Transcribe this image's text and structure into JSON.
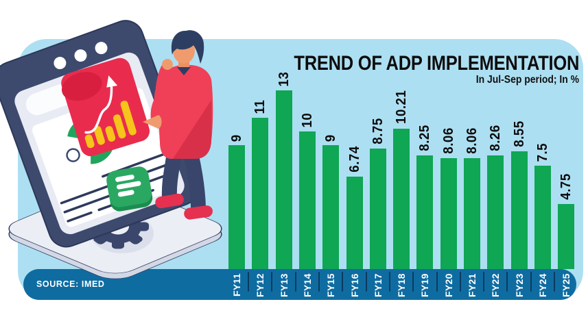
{
  "header": {
    "title": "TREND OF ADP IMPLEMENTATION",
    "subtitle": "In Jul-Sep period; In %"
  },
  "source": {
    "label": "SOURCE: IMED"
  },
  "chart_data": {
    "type": "bar",
    "title": "TREND OF ADP IMPLEMENTATION",
    "subtitle": "In Jul-Sep period; In %",
    "unit": "%",
    "categories": [
      "FY11",
      "FY12",
      "FY13",
      "FY14",
      "FY15",
      "FY16",
      "FY17",
      "FY18",
      "FY19",
      "FY20",
      "FY21",
      "FY22",
      "FY23",
      "FY24",
      "FY25"
    ],
    "values": [
      9,
      11,
      13,
      10,
      9,
      6.74,
      8.75,
      10.21,
      8.25,
      8.06,
      8.06,
      8.26,
      8.55,
      7.5,
      4.75
    ],
    "ylim": [
      0,
      13
    ],
    "grid": false,
    "legend": "none",
    "bar_color": "#0fa654",
    "source": "SOURCE: IMED"
  },
  "colors": {
    "page_bg": "#ffffff",
    "panel_bg": "#addff2",
    "band_bg": "#0f6ca1",
    "bar_green": "#0fa654",
    "divider_navy": "#0d3a5f",
    "title_text": "#0d0d0d",
    "band_text": "#ffffff",
    "illustration_navy": "#3a466b",
    "illustration_red": "#e92c4d",
    "illustration_yellow": "#f6c41b",
    "illustration_green": "#2aa862",
    "illustration_skin": "#f09b6e"
  },
  "icons": {
    "illustration": [
      "browser-window",
      "donut-chart",
      "growth-chart-card",
      "list-icon",
      "gear-icon",
      "person-figure",
      "platform"
    ]
  }
}
